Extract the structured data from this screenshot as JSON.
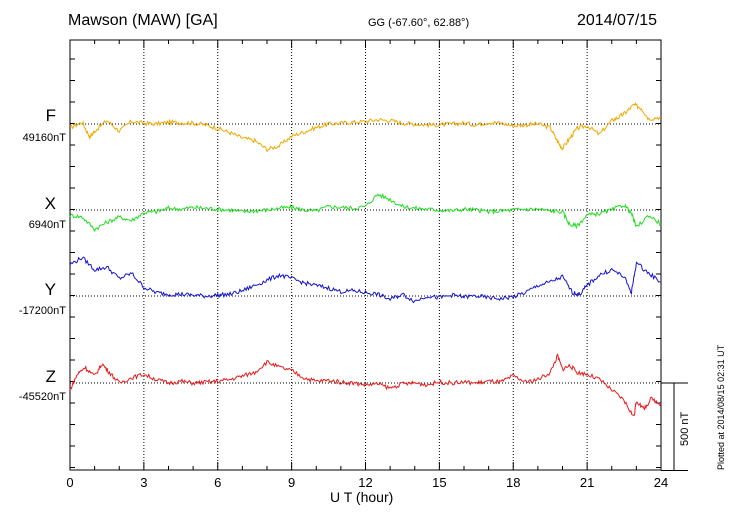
{
  "header": {
    "title": "Mawson (MAW)  [GA]",
    "coords": "GG (-67.60°,  62.88°)",
    "date": "2014/07/15"
  },
  "footer_note": "Plotted at 2014/08/15 02:31  UT",
  "scale_bar_label": "500 nT",
  "colors": {
    "F": "#f0a800",
    "X": "#22dd22",
    "Y": "#1515cc",
    "Z": "#e81c1c"
  },
  "chart_data": {
    "type": "line",
    "xlabel": "U T (hour)",
    "xlim": [
      0,
      24
    ],
    "x_ticks": [
      "0",
      "3",
      "6",
      "9",
      "12",
      "15",
      "18",
      "21",
      "24"
    ],
    "grid": true,
    "scale_bar_nT": 500,
    "series": [
      {
        "name": "F",
        "baseline_label": "49160nT",
        "x": [
          0,
          0.5,
          0.8,
          1,
          1.5,
          2,
          2.5,
          3,
          3.5,
          4,
          4.5,
          5,
          5.5,
          6,
          6.5,
          7,
          7.5,
          8,
          8.5,
          9,
          9.5,
          10,
          10.5,
          11,
          11.5,
          12,
          12.5,
          13,
          13.5,
          14,
          14.5,
          15,
          15.5,
          16,
          16.5,
          17,
          17.5,
          18,
          18.5,
          19,
          19.5,
          19.8,
          20,
          20.3,
          20.6,
          21,
          21.5,
          22,
          22.3,
          22.6,
          22.9,
          23.2,
          23.5,
          24
        ],
        "values": [
          -20,
          10,
          -75,
          -40,
          20,
          -40,
          15,
          5,
          0,
          10,
          8,
          5,
          -5,
          -25,
          -50,
          -80,
          -95,
          -145,
          -125,
          -70,
          -45,
          -20,
          0,
          5,
          10,
          15,
          25,
          20,
          5,
          0,
          -5,
          -5,
          0,
          5,
          -5,
          10,
          5,
          -10,
          -5,
          0,
          -20,
          -100,
          -140,
          -80,
          -25,
          -10,
          -60,
          20,
          40,
          70,
          110,
          90,
          30,
          40
        ],
        "ylim": [
          -265,
          465
        ]
      },
      {
        "name": "X",
        "baseline_label": "6940nT",
        "x": [
          0,
          0.5,
          1,
          1.5,
          2,
          2.5,
          3,
          3.5,
          4,
          4.5,
          5,
          5.5,
          6,
          6.5,
          7,
          7.5,
          8,
          8.5,
          9,
          9.5,
          10,
          10.5,
          11,
          11.5,
          12,
          12.5,
          13,
          13.5,
          14,
          14.5,
          15,
          15.5,
          16,
          16.5,
          17,
          17.5,
          18,
          18.5,
          19,
          19.5,
          20,
          20.3,
          20.6,
          21,
          21.5,
          22,
          22.5,
          22.8,
          23,
          23.5,
          24
        ],
        "values": [
          -30,
          -40,
          -110,
          -70,
          -40,
          -60,
          -15,
          -10,
          10,
          5,
          15,
          10,
          5,
          0,
          -10,
          -5,
          0,
          10,
          15,
          0,
          -5,
          20,
          15,
          10,
          20,
          90,
          60,
          20,
          10,
          5,
          0,
          -5,
          5,
          0,
          -10,
          -5,
          0,
          5,
          5,
          -5,
          -10,
          -85,
          -90,
          -30,
          -20,
          0,
          30,
          -20,
          -100,
          -30,
          -80
        ],
        "ylim": [
          -265,
          465
        ]
      },
      {
        "name": "Y",
        "baseline_label": "-17200nT",
        "x": [
          0,
          0.5,
          1,
          1.5,
          2,
          2.5,
          3,
          3.5,
          4,
          4.5,
          5,
          5.5,
          6,
          6.5,
          7,
          7.5,
          8,
          8.5,
          9,
          9.5,
          10,
          10.5,
          11,
          11.5,
          12,
          12.5,
          13,
          13.5,
          14,
          14.5,
          15,
          15.5,
          16,
          16.5,
          17,
          17.5,
          18,
          18.5,
          19,
          19.5,
          20,
          20.4,
          20.7,
          21,
          21.5,
          22,
          22.5,
          22.8,
          23,
          23.5,
          24
        ],
        "values": [
          180,
          220,
          150,
          165,
          100,
          130,
          50,
          20,
          10,
          10,
          5,
          0,
          5,
          10,
          30,
          60,
          90,
          120,
          100,
          75,
          60,
          45,
          25,
          30,
          20,
          10,
          -20,
          10,
          -30,
          0,
          -10,
          5,
          -5,
          0,
          -10,
          -15,
          -5,
          20,
          60,
          80,
          110,
          20,
          10,
          60,
          120,
          150,
          110,
          20,
          190,
          130,
          80
        ],
        "ylim": [
          -265,
          465
        ]
      },
      {
        "name": "Z",
        "baseline_label": "-45520nT",
        "x": [
          0,
          0.3,
          0.6,
          1,
          1.3,
          1.6,
          2,
          2.5,
          3,
          3.5,
          4,
          4.5,
          5,
          5.5,
          6,
          6.5,
          7,
          7.5,
          8,
          8.5,
          9,
          9.5,
          10,
          10.5,
          11,
          11.5,
          12,
          12.5,
          13,
          13.5,
          14,
          14.5,
          15,
          15.5,
          16,
          16.5,
          17,
          17.5,
          18,
          18.5,
          19,
          19.5,
          19.8,
          20,
          20.3,
          20.6,
          21,
          21.5,
          22,
          22.5,
          22.9,
          23,
          23.3,
          23.6,
          24
        ],
        "values": [
          -40,
          50,
          90,
          40,
          110,
          60,
          0,
          30,
          50,
          20,
          0,
          10,
          0,
          5,
          10,
          20,
          40,
          60,
          120,
          90,
          70,
          30,
          10,
          15,
          5,
          0,
          -10,
          -5,
          -30,
          -5,
          0,
          -10,
          5,
          0,
          5,
          0,
          10,
          5,
          40,
          5,
          20,
          60,
          155,
          80,
          100,
          60,
          50,
          20,
          -40,
          -100,
          -195,
          -100,
          -150,
          -90,
          -120
        ],
        "ylim": [
          -265,
          465
        ]
      }
    ]
  }
}
